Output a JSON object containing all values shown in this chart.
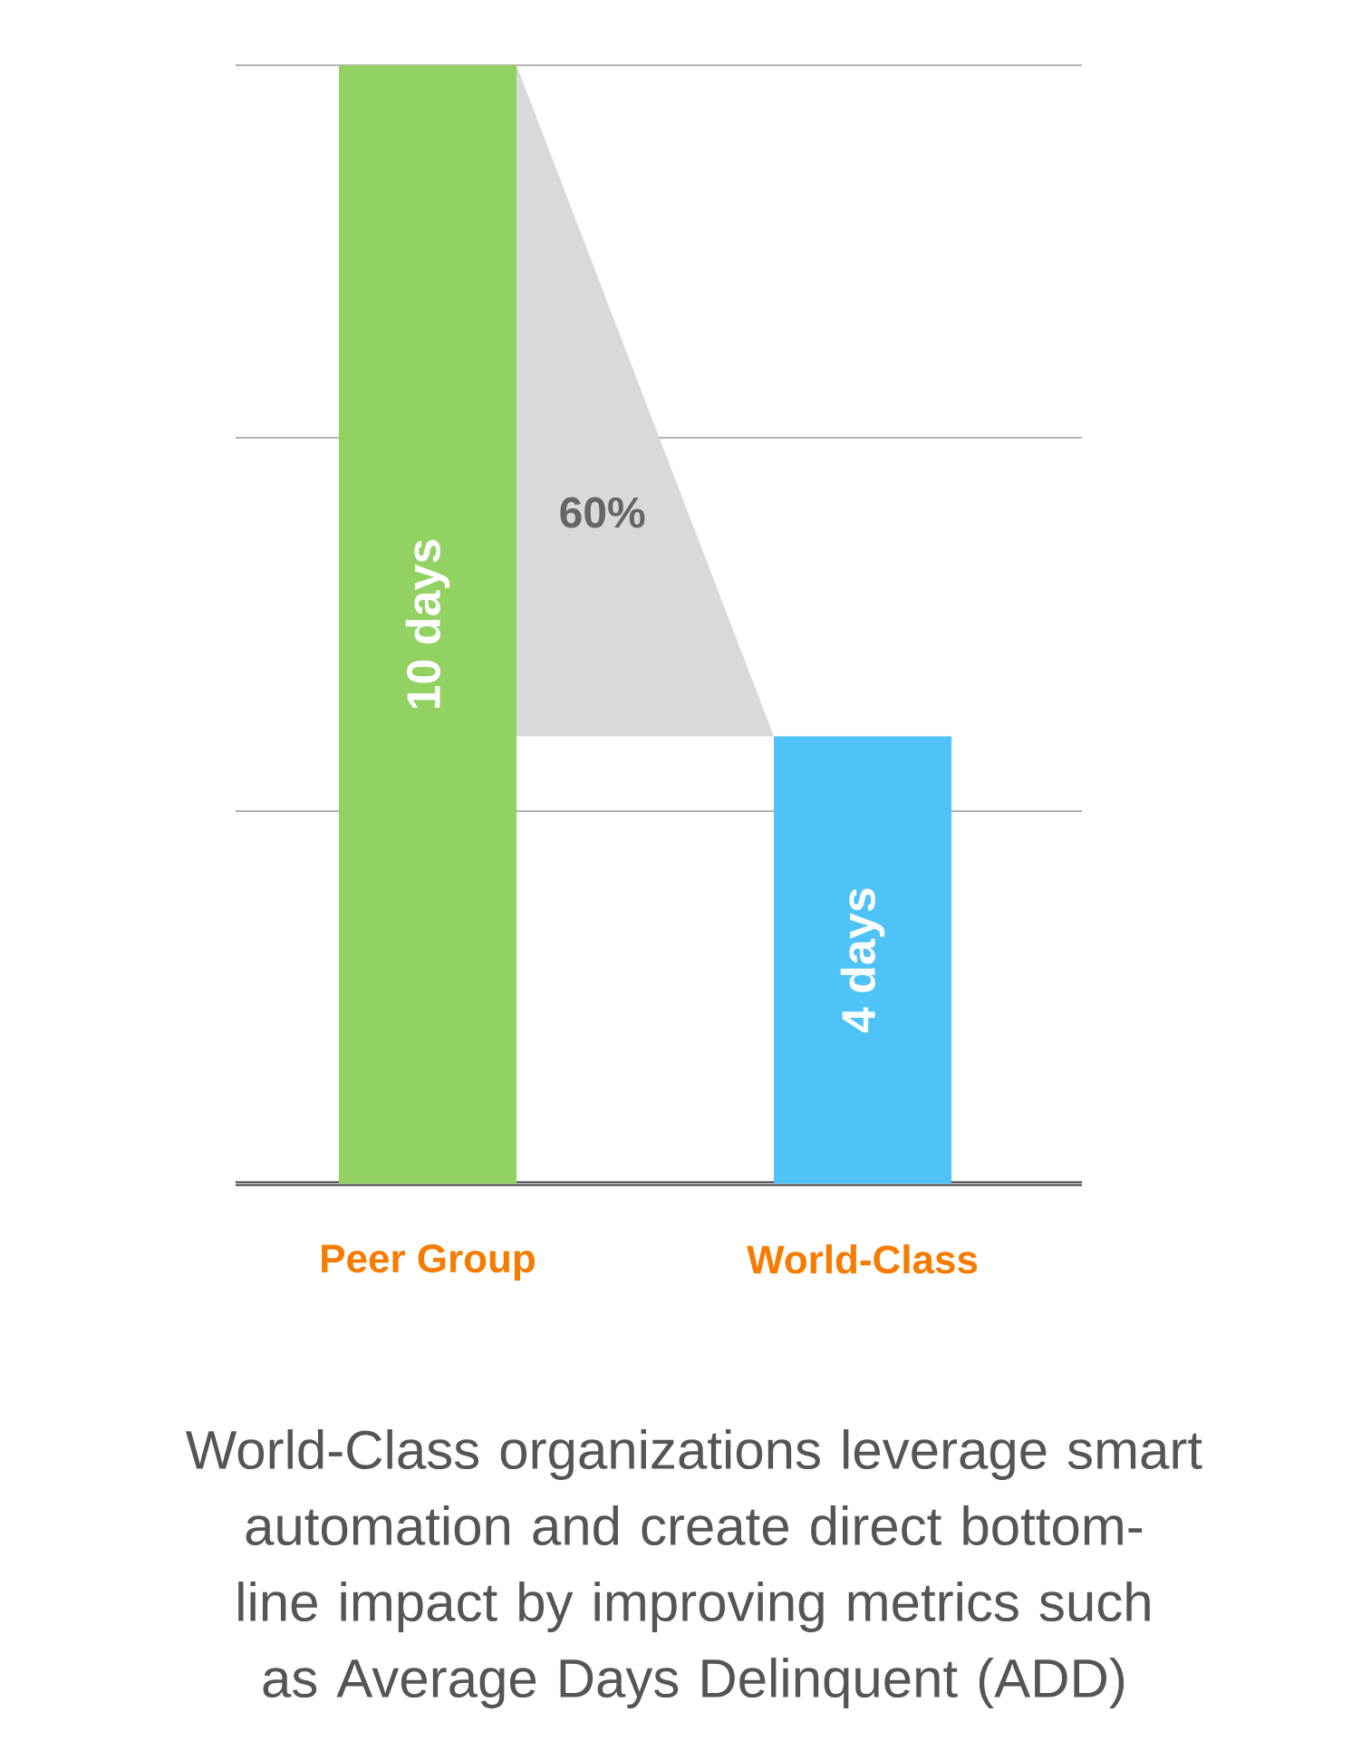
{
  "chart_data": {
    "type": "bar",
    "categories": [
      "Peer Group",
      "World-Class"
    ],
    "values": [
      10,
      4
    ],
    "colors": [
      "#92d263",
      "#4fc3f7"
    ],
    "value_labels": [
      "10 days",
      "4 days"
    ],
    "ylim": [
      0,
      10
    ],
    "yticks": [
      {
        "value": 0,
        "label": null
      },
      {
        "value": 3.33,
        "label": null
      },
      {
        "value": 6.67,
        "label": null
      },
      {
        "value": 10,
        "label": null
      }
    ],
    "grid": "y",
    "tick_labels": "x",
    "annotations": [
      "60%",
      "World-Class organizations leverage smart automation and create direct bottom-line impact by improving metrics such as Average Days Delinquent (ADD)"
    ]
  }
}
